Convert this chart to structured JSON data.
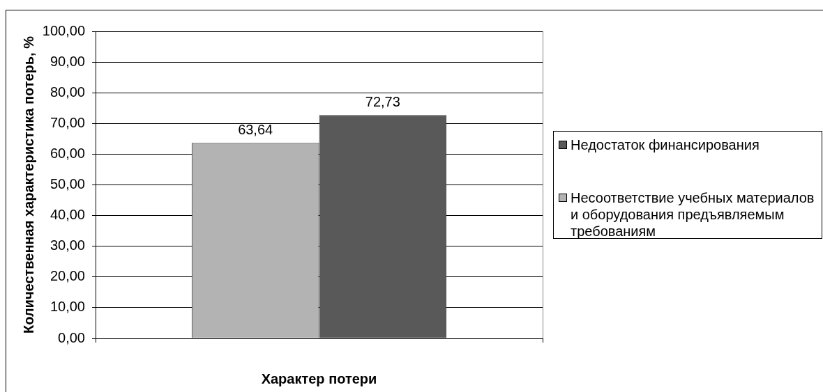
{
  "chart_data": {
    "type": "bar",
    "xlabel": "Характер потери",
    "ylabel": "Количественная характеристика потерь, %",
    "categories": [
      null
    ],
    "series": [
      {
        "name": "Несоответствие учебных материалов и оборудования предъявляемым требованиям",
        "color": "#b3b3b3",
        "values": [
          63.64
        ],
        "value_labels": [
          "63,64"
        ]
      },
      {
        "name": "Недостаток финансирования",
        "color": "#595959",
        "values": [
          72.73
        ],
        "value_labels": [
          "72,73"
        ]
      }
    ],
    "ylim": [
      0,
      100
    ],
    "yticks": [
      {
        "value": 0,
        "label": "0,00"
      },
      {
        "value": 10,
        "label": "10,00"
      },
      {
        "value": 20,
        "label": "20,00"
      },
      {
        "value": 30,
        "label": "30,00"
      },
      {
        "value": 40,
        "label": "40,00"
      },
      {
        "value": 50,
        "label": "50,00"
      },
      {
        "value": 60,
        "label": "60,00"
      },
      {
        "value": 70,
        "label": "70,00"
      },
      {
        "value": 80,
        "label": "80,00"
      },
      {
        "value": 90,
        "label": "90,00"
      },
      {
        "value": 100,
        "label": "100,00"
      }
    ],
    "grid": "y",
    "legend": "right"
  }
}
